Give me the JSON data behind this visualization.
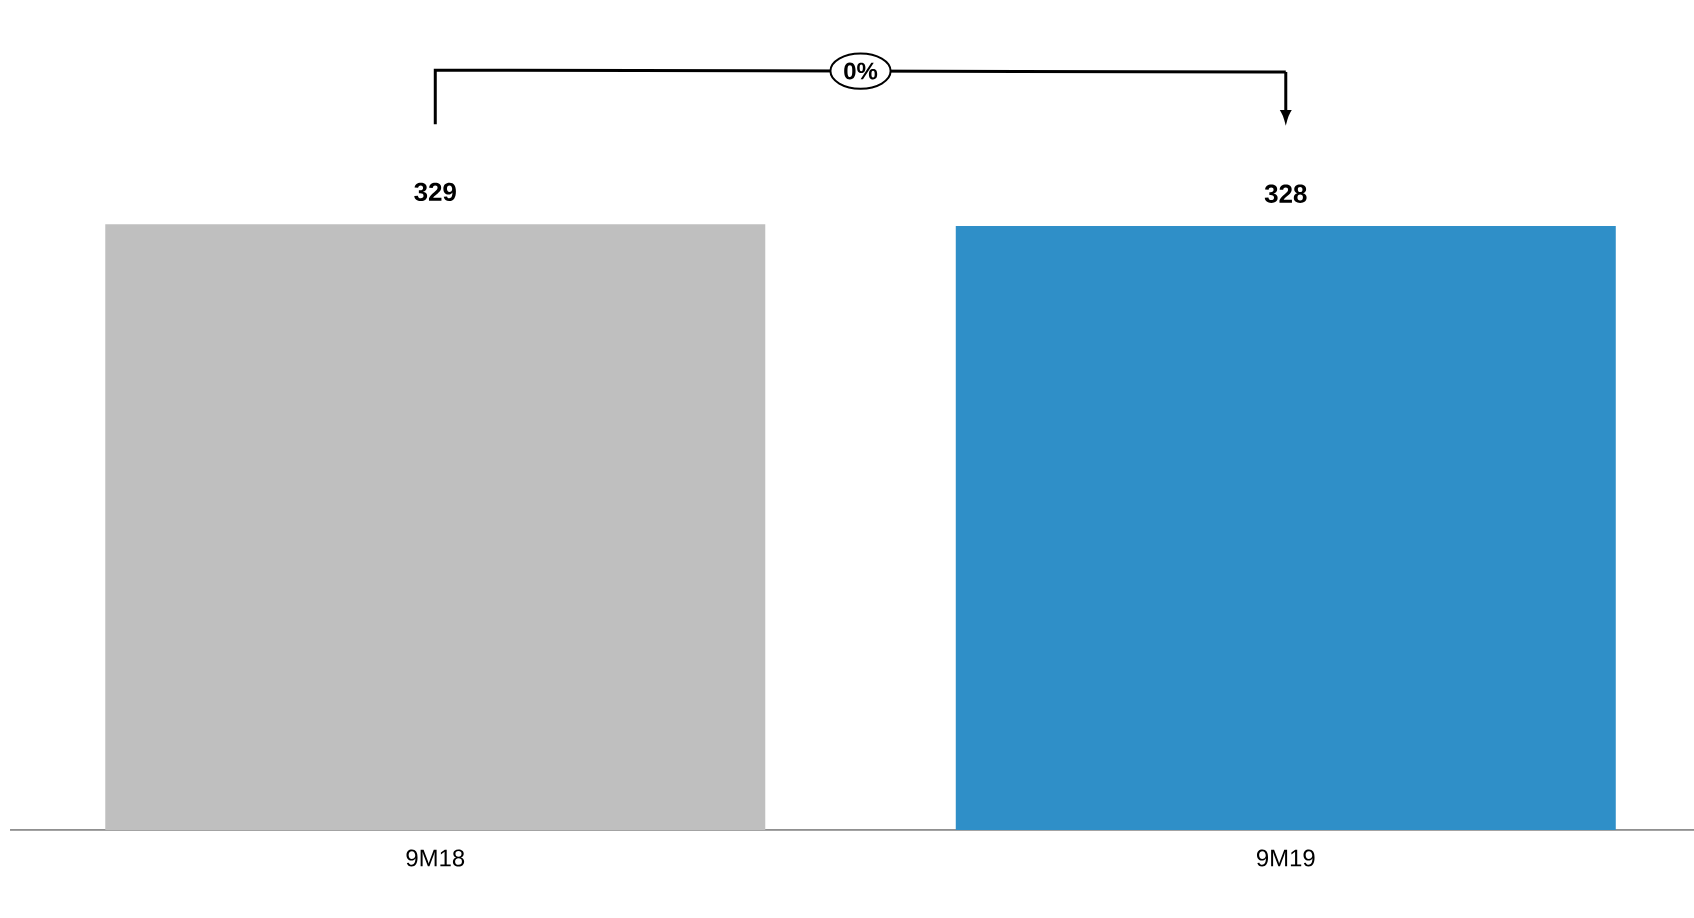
{
  "chart_data": {
    "type": "bar",
    "categories": [
      "9M18",
      "9M19"
    ],
    "values": [
      329,
      328
    ],
    "colors": [
      "#bfbfbf",
      "#2f8fc8"
    ],
    "data_labels": true,
    "annotations": [
      "0%"
    ]
  }
}
